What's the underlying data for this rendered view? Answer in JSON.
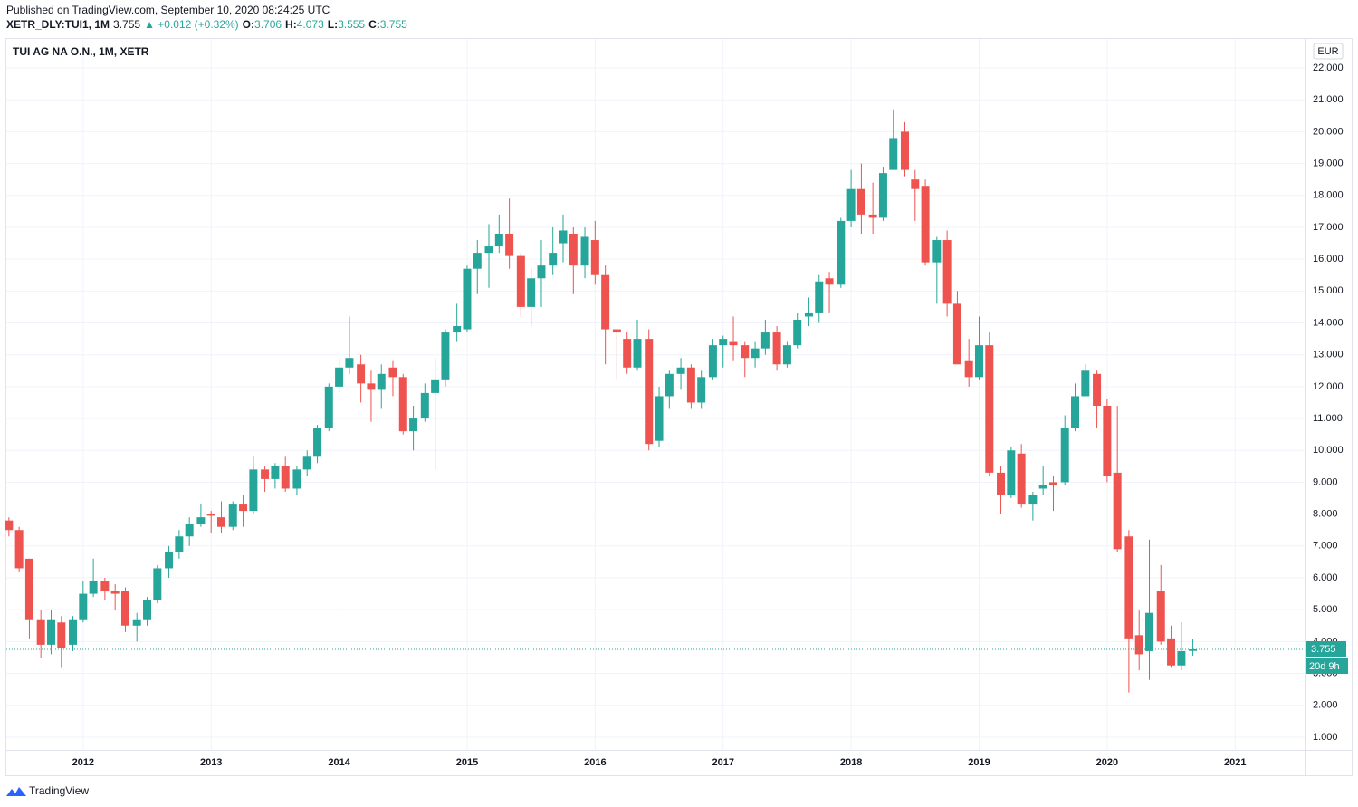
{
  "header": {
    "published": "Published on TradingView.com, September 10, 2020 08:24:25 UTC",
    "symbol": "XETR_DLY:TUI1, 1M",
    "last": "3.755",
    "change": "▲ +0.012 (+0.32%)",
    "ohlc": [
      {
        "label": "O:",
        "value": "3.706"
      },
      {
        "label": "H:",
        "value": "4.073"
      },
      {
        "label": "L:",
        "value": "3.555"
      },
      {
        "label": "C:",
        "value": "3.755"
      }
    ]
  },
  "footer": "TradingView",
  "chart_data": {
    "type": "candlestick",
    "title": "TUI AG NA O.N., 1M, XETR",
    "currency": "EUR",
    "up_color": "#26a69a",
    "down_color": "#ef5350",
    "grid": true,
    "xlim": [
      2011.4,
      2021.55
    ],
    "xticks": [
      2012,
      2013,
      2014,
      2015,
      2016,
      2017,
      2018,
      2019,
      2020,
      2021
    ],
    "ylim": [
      0.6,
      22.91
    ],
    "yticks": [
      {
        "value": 22,
        "label": "22.000"
      },
      {
        "value": 21,
        "label": "21.000"
      },
      {
        "value": 20,
        "label": "20.000"
      },
      {
        "value": 19,
        "label": "19.000"
      },
      {
        "value": 18,
        "label": "18.000"
      },
      {
        "value": 17,
        "label": "17.000"
      },
      {
        "value": 16,
        "label": "16.000"
      },
      {
        "value": 15,
        "label": "15.000"
      },
      {
        "value": 14,
        "label": "14.000"
      },
      {
        "value": 13,
        "label": "13.000"
      },
      {
        "value": 12,
        "label": "12.000"
      },
      {
        "value": 11,
        "label": "11.000"
      },
      {
        "value": 10,
        "label": "10.000"
      },
      {
        "value": 9,
        "label": "9.000"
      },
      {
        "value": 8,
        "label": "8.000"
      },
      {
        "value": 7,
        "label": "7.000"
      },
      {
        "value": 6,
        "label": "6.000"
      },
      {
        "value": 5,
        "label": "5.000"
      },
      {
        "value": 4,
        "label": "4.000"
      },
      {
        "value": 3,
        "label": "3.000"
      },
      {
        "value": 2,
        "label": "2.000"
      },
      {
        "value": 1,
        "label": "1.000"
      }
    ],
    "last_price": {
      "value": 3.755,
      "label": "3.755"
    },
    "countdown": "20d 9h",
    "x": [
      2011.42,
      2011.5,
      2011.58,
      2011.67,
      2011.75,
      2011.83,
      2011.92,
      2012.0,
      2012.08,
      2012.17,
      2012.25,
      2012.33,
      2012.42,
      2012.5,
      2012.58,
      2012.67,
      2012.75,
      2012.83,
      2012.92,
      2013.0,
      2013.08,
      2013.17,
      2013.25,
      2013.33,
      2013.42,
      2013.5,
      2013.58,
      2013.67,
      2013.75,
      2013.83,
      2013.92,
      2014.0,
      2014.08,
      2014.17,
      2014.25,
      2014.33,
      2014.42,
      2014.5,
      2014.58,
      2014.67,
      2014.75,
      2014.83,
      2014.92,
      2015.0,
      2015.08,
      2015.17,
      2015.25,
      2015.33,
      2015.42,
      2015.5,
      2015.58,
      2015.67,
      2015.75,
      2015.83,
      2015.92,
      2016.0,
      2016.08,
      2016.17,
      2016.25,
      2016.33,
      2016.42,
      2016.5,
      2016.58,
      2016.67,
      2016.75,
      2016.83,
      2016.92,
      2017.0,
      2017.08,
      2017.17,
      2017.25,
      2017.33,
      2017.42,
      2017.5,
      2017.58,
      2017.67,
      2017.75,
      2017.83,
      2017.92,
      2018.0,
      2018.08,
      2018.17,
      2018.25,
      2018.33,
      2018.42,
      2018.5,
      2018.58,
      2018.67,
      2018.75,
      2018.83,
      2018.92,
      2019.0,
      2019.08,
      2019.17,
      2019.25,
      2019.33,
      2019.42,
      2019.5,
      2019.58,
      2019.67,
      2019.75,
      2019.83,
      2019.92,
      2020.0,
      2020.08,
      2020.17,
      2020.25,
      2020.33,
      2020.42,
      2020.5,
      2020.58,
      2020.67
    ],
    "open": [
      7.8,
      7.5,
      6.6,
      4.7,
      3.9,
      4.6,
      3.9,
      4.7,
      5.5,
      5.9,
      5.6,
      5.6,
      4.5,
      4.7,
      5.3,
      6.3,
      6.8,
      7.3,
      7.7,
      8.0,
      7.9,
      7.6,
      8.3,
      8.1,
      9.4,
      9.1,
      9.5,
      8.8,
      9.4,
      9.8,
      10.7,
      12.0,
      12.6,
      12.7,
      12.1,
      11.9,
      12.6,
      12.3,
      10.6,
      11.0,
      11.8,
      12.2,
      13.7,
      13.8,
      15.7,
      16.2,
      16.4,
      16.8,
      16.1,
      14.5,
      15.4,
      15.8,
      16.5,
      16.8,
      15.8,
      16.6,
      15.5,
      13.8,
      13.5,
      12.6,
      13.5,
      10.3,
      11.7,
      12.4,
      12.6,
      11.5,
      12.3,
      13.3,
      13.4,
      13.3,
      12.9,
      13.2,
      13.7,
      12.7,
      13.3,
      14.2,
      14.3,
      15.4,
      15.2,
      17.2,
      18.2,
      17.4,
      17.3,
      18.8,
      20.0,
      18.5,
      18.3,
      15.9,
      16.6,
      14.6,
      12.8,
      12.3,
      13.3,
      9.3,
      8.6,
      9.9,
      8.3,
      8.8,
      9.0,
      9.0,
      10.7,
      11.7,
      12.4,
      11.4,
      9.3,
      7.3,
      4.2,
      3.7,
      5.6,
      4.1,
      3.25,
      3.706
    ],
    "high": [
      7.9,
      7.6,
      6.6,
      5.0,
      5.0,
      4.8,
      4.8,
      5.9,
      6.6,
      6.0,
      5.8,
      5.7,
      4.9,
      5.4,
      6.4,
      7.0,
      7.5,
      7.9,
      8.3,
      8.1,
      8.4,
      8.4,
      8.6,
      9.8,
      9.5,
      9.6,
      9.8,
      9.5,
      10.0,
      10.8,
      12.1,
      12.9,
      14.2,
      13.0,
      12.5,
      12.7,
      12.8,
      12.4,
      11.4,
      12.1,
      12.9,
      13.8,
      14.6,
      15.8,
      16.6,
      17.1,
      17.4,
      17.9,
      16.2,
      15.7,
      16.6,
      17.0,
      17.4,
      17.0,
      17.0,
      17.2,
      15.8,
      13.8,
      13.7,
      14.1,
      13.8,
      12.0,
      12.5,
      12.9,
      12.7,
      12.5,
      13.5,
      13.6,
      14.2,
      13.4,
      13.4,
      14.1,
      13.9,
      13.4,
      14.3,
      14.8,
      15.5,
      15.6,
      17.3,
      18.8,
      19.0,
      18.4,
      18.9,
      20.7,
      20.3,
      18.8,
      18.5,
      16.7,
      16.9,
      15.0,
      13.5,
      14.2,
      13.7,
      9.5,
      10.1,
      10.2,
      8.7,
      9.5,
      9.2,
      11.1,
      12.1,
      12.7,
      12.5,
      11.6,
      11.4,
      7.5,
      5.0,
      7.2,
      6.4,
      4.5,
      4.6,
      4.073
    ],
    "low": [
      7.3,
      6.2,
      4.1,
      3.5,
      3.6,
      3.2,
      3.7,
      4.6,
      5.4,
      5.3,
      5.0,
      4.3,
      4.0,
      4.5,
      5.2,
      6.0,
      6.6,
      7.0,
      7.6,
      7.4,
      7.4,
      7.5,
      7.6,
      8.0,
      8.7,
      8.8,
      8.7,
      8.6,
      9.2,
      9.6,
      10.6,
      11.8,
      12.4,
      11.5,
      10.9,
      11.3,
      11.7,
      10.5,
      10.0,
      10.9,
      9.4,
      12.0,
      13.4,
      13.7,
      14.9,
      15.1,
      16.2,
      15.7,
      14.2,
      13.9,
      14.5,
      15.5,
      15.9,
      14.9,
      15.4,
      15.2,
      12.7,
      12.2,
      12.4,
      12.5,
      10.0,
      10.1,
      11.3,
      11.9,
      11.3,
      11.3,
      12.2,
      12.6,
      12.8,
      12.3,
      12.6,
      13.0,
      12.5,
      12.6,
      13.2,
      13.9,
      14.0,
      14.3,
      15.1,
      17.0,
      16.8,
      16.8,
      17.2,
      18.8,
      18.6,
      17.2,
      15.8,
      14.6,
      14.2,
      12.7,
      12.0,
      12.2,
      9.2,
      8.0,
      8.5,
      8.2,
      7.8,
      8.6,
      8.1,
      8.9,
      10.6,
      11.7,
      10.7,
      9.0,
      6.8,
      2.4,
      3.1,
      2.8,
      3.9,
      3.2,
      3.1,
      3.555
    ],
    "close": [
      7.5,
      6.3,
      4.7,
      3.9,
      4.7,
      3.8,
      4.7,
      5.5,
      5.9,
      5.6,
      5.5,
      4.5,
      4.7,
      5.3,
      6.3,
      6.8,
      7.3,
      7.7,
      7.9,
      7.95,
      7.6,
      8.3,
      8.1,
      9.4,
      9.1,
      9.5,
      8.8,
      9.4,
      9.8,
      10.7,
      12.0,
      12.6,
      12.9,
      12.1,
      11.9,
      12.4,
      12.3,
      10.6,
      11.0,
      11.8,
      12.2,
      13.7,
      13.9,
      15.7,
      16.2,
      16.4,
      16.8,
      16.1,
      14.5,
      15.4,
      15.8,
      16.2,
      16.9,
      15.8,
      16.7,
      15.5,
      13.8,
      13.7,
      12.6,
      13.5,
      10.2,
      11.7,
      12.4,
      12.6,
      11.5,
      12.3,
      13.3,
      13.5,
      13.3,
      12.9,
      13.2,
      13.7,
      12.7,
      13.3,
      14.1,
      14.3,
      15.3,
      15.2,
      17.2,
      18.2,
      17.4,
      17.3,
      18.7,
      19.8,
      18.8,
      18.2,
      15.9,
      16.6,
      14.6,
      12.7,
      12.3,
      13.3,
      9.3,
      8.6,
      10.0,
      8.3,
      8.6,
      8.9,
      8.9,
      10.7,
      11.7,
      12.5,
      11.4,
      9.2,
      6.9,
      4.1,
      3.6,
      4.9,
      4.0,
      3.25,
      3.7,
      3.755
    ]
  }
}
